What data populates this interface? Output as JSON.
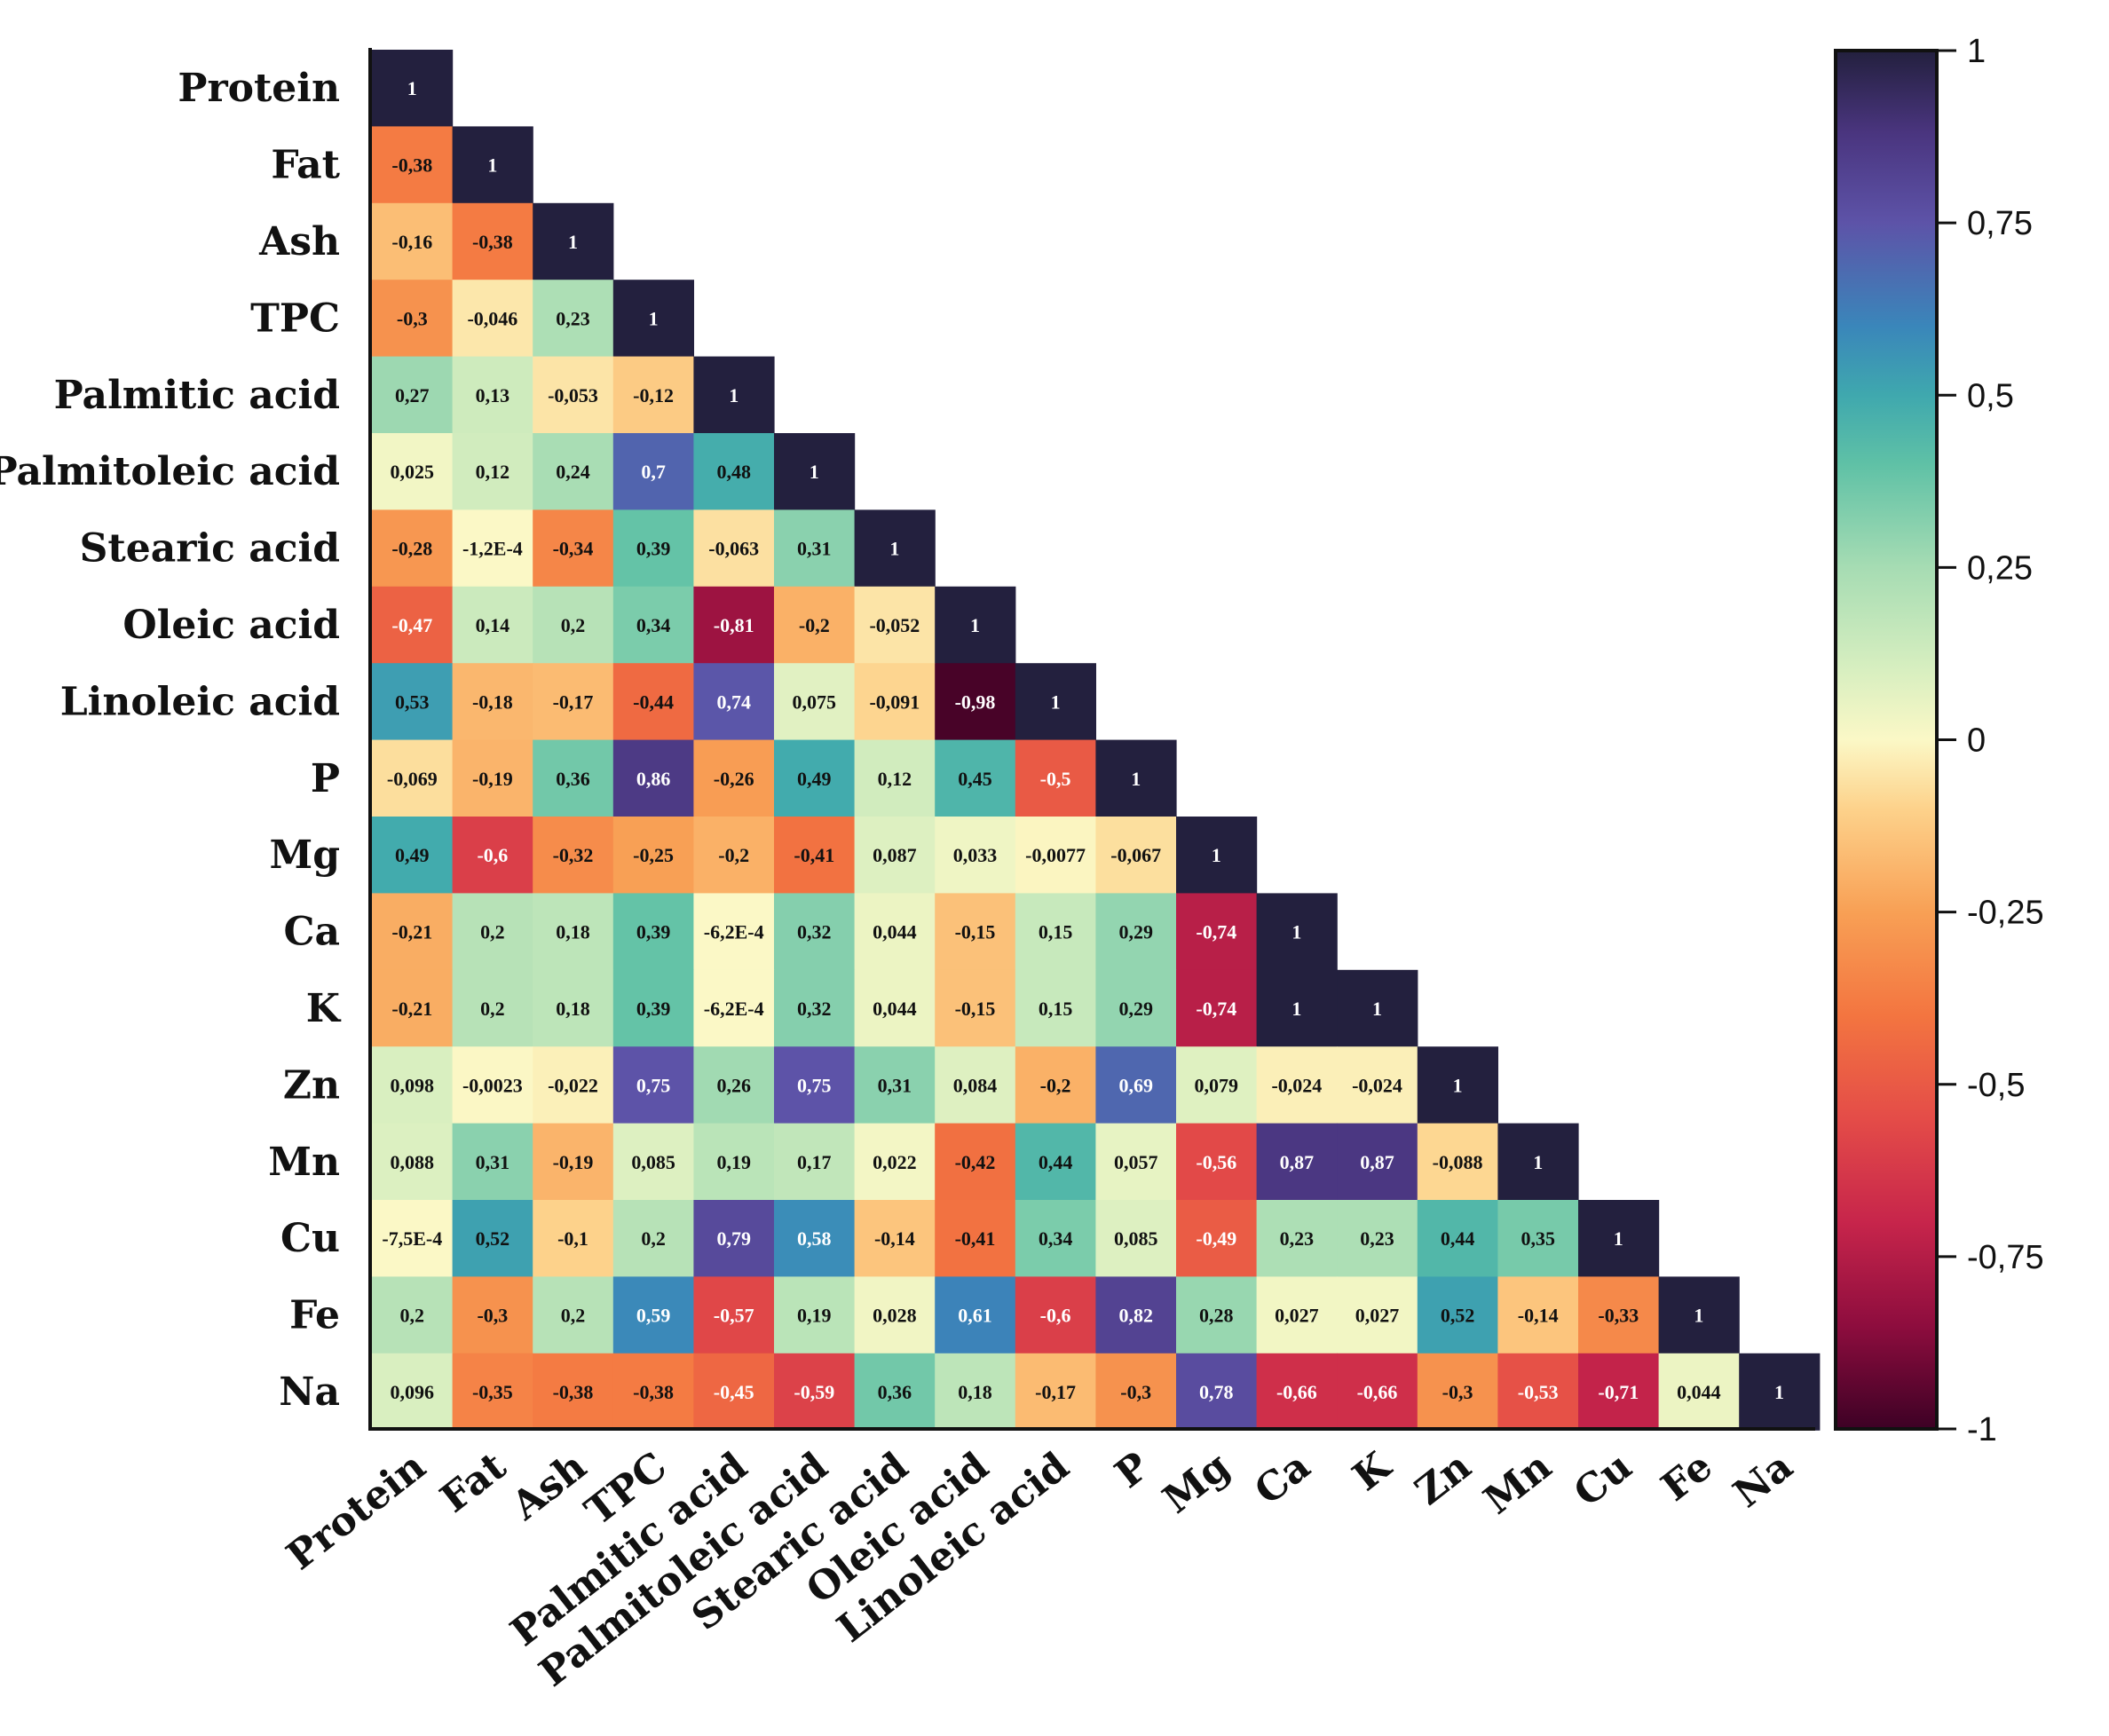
{
  "chart_data": {
    "type": "heatmap",
    "variant": "lower-triangular correlation matrix",
    "variables": [
      "Protein",
      "Fat",
      "Ash",
      "TPC",
      "Palmitic acid",
      "Palmitoleic acid",
      "Stearic acid",
      "Oleic acid",
      "Linoleic acid",
      "P",
      "Mg",
      "Ca",
      "K",
      "Zn",
      "Mn",
      "Cu",
      "Fe",
      "Na"
    ],
    "rows": [
      {
        "values": [
          1
        ],
        "labels": [
          "1"
        ]
      },
      {
        "values": [
          -0.38,
          1
        ],
        "labels": [
          "-0,38",
          "1"
        ]
      },
      {
        "values": [
          -0.16,
          -0.38,
          1
        ],
        "labels": [
          "-0,16",
          "-0,38",
          "1"
        ]
      },
      {
        "values": [
          -0.3,
          -0.046,
          0.23,
          1
        ],
        "labels": [
          "-0,3",
          "-0,046",
          "0,23",
          "1"
        ]
      },
      {
        "values": [
          0.27,
          0.13,
          -0.053,
          -0.12,
          1
        ],
        "labels": [
          "0,27",
          "0,13",
          "-0,053",
          "-0,12",
          "1"
        ]
      },
      {
        "values": [
          0.025,
          0.12,
          0.24,
          0.7,
          0.48,
          1
        ],
        "labels": [
          "0,025",
          "0,12",
          "0,24",
          "0,7",
          "0,48",
          "1"
        ]
      },
      {
        "values": [
          -0.28,
          -0.00012,
          -0.34,
          0.39,
          -0.063,
          0.31,
          1
        ],
        "labels": [
          "-0,28",
          "-1,2E-4",
          "-0,34",
          "0,39",
          "-0,063",
          "0,31",
          "1"
        ]
      },
      {
        "values": [
          -0.47,
          0.14,
          0.2,
          0.34,
          -0.81,
          -0.2,
          -0.052,
          1
        ],
        "labels": [
          "-0,47",
          "0,14",
          "0,2",
          "0,34",
          "-0,81",
          "-0,2",
          "-0,052",
          "1"
        ]
      },
      {
        "values": [
          0.53,
          -0.18,
          -0.17,
          -0.44,
          0.74,
          0.075,
          -0.091,
          -0.98,
          1
        ],
        "labels": [
          "0,53",
          "-0,18",
          "-0,17",
          "-0,44",
          "0,74",
          "0,075",
          "-0,091",
          "-0,98",
          "1"
        ]
      },
      {
        "values": [
          -0.069,
          -0.19,
          0.36,
          0.86,
          -0.26,
          0.49,
          0.12,
          0.45,
          -0.5,
          1
        ],
        "labels": [
          "-0,069",
          "-0,19",
          "0,36",
          "0,86",
          "-0,26",
          "0,49",
          "0,12",
          "0,45",
          "-0,5",
          "1"
        ]
      },
      {
        "values": [
          0.49,
          -0.6,
          -0.32,
          -0.25,
          -0.2,
          -0.41,
          0.087,
          0.033,
          -0.0077,
          -0.067,
          1
        ],
        "labels": [
          "0,49",
          "-0,6",
          "-0,32",
          "-0,25",
          "-0,2",
          "-0,41",
          "0,087",
          "0,033",
          "-0,0077",
          "-0,067",
          "1"
        ]
      },
      {
        "values": [
          -0.21,
          0.2,
          0.18,
          0.39,
          -0.00062,
          0.32,
          0.044,
          -0.15,
          0.15,
          0.29,
          -0.74,
          1
        ],
        "labels": [
          "-0,21",
          "0,2",
          "0,18",
          "0,39",
          "-6,2E-4",
          "0,32",
          "0,044",
          "-0,15",
          "0,15",
          "0,29",
          "-0,74",
          "1"
        ]
      },
      {
        "values": [
          -0.21,
          0.2,
          0.18,
          0.39,
          -0.00062,
          0.32,
          0.044,
          -0.15,
          0.15,
          0.29,
          -0.74,
          1,
          1
        ],
        "labels": [
          "-0,21",
          "0,2",
          "0,18",
          "0,39",
          "-6,2E-4",
          "0,32",
          "0,044",
          "-0,15",
          "0,15",
          "0,29",
          "-0,74",
          "1",
          "1"
        ]
      },
      {
        "values": [
          0.098,
          -0.0023,
          -0.022,
          0.75,
          0.26,
          0.75,
          0.31,
          0.084,
          -0.2,
          0.69,
          0.079,
          -0.024,
          -0.024,
          1
        ],
        "labels": [
          "0,098",
          "-0,0023",
          "-0,022",
          "0,75",
          "0,26",
          "0,75",
          "0,31",
          "0,084",
          "-0,2",
          "0,69",
          "0,079",
          "-0,024",
          "-0,024",
          "1"
        ]
      },
      {
        "values": [
          0.088,
          0.31,
          -0.19,
          0.085,
          0.19,
          0.17,
          0.022,
          -0.42,
          0.44,
          0.057,
          -0.56,
          0.87,
          0.87,
          -0.088,
          1
        ],
        "labels": [
          "0,088",
          "0,31",
          "-0,19",
          "0,085",
          "0,19",
          "0,17",
          "0,022",
          "-0,42",
          "0,44",
          "0,057",
          "-0,56",
          "0,87",
          "0,87",
          "-0,088",
          "1"
        ]
      },
      {
        "values": [
          -0.00075,
          0.52,
          -0.1,
          0.2,
          0.79,
          0.58,
          -0.14,
          -0.41,
          0.34,
          0.085,
          -0.49,
          0.23,
          0.23,
          0.44,
          0.35,
          1
        ],
        "labels": [
          "-7,5E-4",
          "0,52",
          "-0,1",
          "0,2",
          "0,79",
          "0,58",
          "-0,14",
          "-0,41",
          "0,34",
          "0,085",
          "-0,49",
          "0,23",
          "0,23",
          "0,44",
          "0,35",
          "1"
        ]
      },
      {
        "values": [
          0.2,
          -0.3,
          0.2,
          0.59,
          -0.57,
          0.19,
          0.028,
          0.61,
          -0.6,
          0.82,
          0.28,
          0.027,
          0.027,
          0.52,
          -0.14,
          -0.33,
          1
        ],
        "labels": [
          "0,2",
          "-0,3",
          "0,2",
          "0,59",
          "-0,57",
          "0,19",
          "0,028",
          "0,61",
          "-0,6",
          "0,82",
          "0,28",
          "0,027",
          "0,027",
          "0,52",
          "-0,14",
          "-0,33",
          "1"
        ]
      },
      {
        "values": [
          0.096,
          -0.35,
          -0.38,
          -0.38,
          -0.45,
          -0.59,
          0.36,
          0.18,
          -0.17,
          -0.3,
          0.78,
          -0.66,
          -0.66,
          -0.3,
          -0.53,
          -0.71,
          0.044,
          1
        ],
        "labels": [
          "0,096",
          "-0,35",
          "-0,38",
          "-0,38",
          "-0,45",
          "-0,59",
          "0,36",
          "0,18",
          "-0,17",
          "-0,3",
          "0,78",
          "-0,66",
          "-0,66",
          "-0,3",
          "-0,53",
          "-0,71",
          "0,044",
          "1"
        ]
      }
    ],
    "colorbar": {
      "range": [
        -1,
        1
      ],
      "ticks": [
        1,
        0.75,
        0.5,
        0.25,
        0,
        -0.25,
        -0.5,
        -0.75,
        -1
      ],
      "tick_labels": [
        "1",
        "0,75",
        "0,5",
        "0,25",
        "0",
        "-0,25",
        "-0,5",
        "-0,75",
        "-1"
      ],
      "colormap": "spectral (dark red at -1, orange, pale yellow at 0, green, teal, blue, purple, dark navy at 1)"
    },
    "colors": {
      "stops": [
        {
          "v": -1.0,
          "c": "#3d0125"
        },
        {
          "v": -0.85,
          "c": "#8e0d3e"
        },
        {
          "v": -0.7,
          "c": "#c7254b"
        },
        {
          "v": -0.55,
          "c": "#e44c48"
        },
        {
          "v": -0.4,
          "c": "#f37540"
        },
        {
          "v": -0.25,
          "c": "#f8a055"
        },
        {
          "v": -0.1,
          "c": "#fdd28b"
        },
        {
          "v": 0.0,
          "c": "#fbf8c6"
        },
        {
          "v": 0.1,
          "c": "#d8efc0"
        },
        {
          "v": 0.25,
          "c": "#a6dcb3"
        },
        {
          "v": 0.4,
          "c": "#5fc1a6"
        },
        {
          "v": 0.5,
          "c": "#3fa8ae"
        },
        {
          "v": 0.6,
          "c": "#3a86ba"
        },
        {
          "v": 0.75,
          "c": "#5d53a8"
        },
        {
          "v": 0.88,
          "c": "#4a357f"
        },
        {
          "v": 1.0,
          "c": "#23203e"
        }
      ],
      "light_text": "#ffffff",
      "dark_text": "#111111",
      "axis": "#111111"
    },
    "title": "",
    "xlabel": "",
    "ylabel": "",
    "legend": "none",
    "grid": false
  }
}
